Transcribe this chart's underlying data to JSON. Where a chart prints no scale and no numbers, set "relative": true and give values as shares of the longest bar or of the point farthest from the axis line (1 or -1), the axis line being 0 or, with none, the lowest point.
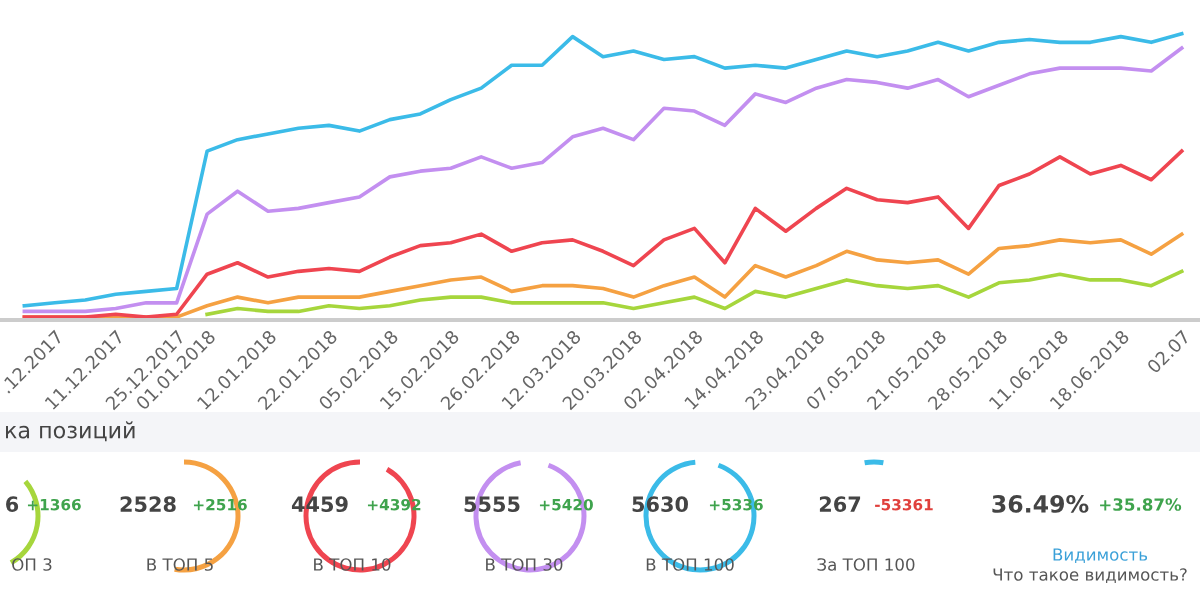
{
  "chart_data": [
    {
      "type": "line",
      "relative": true,
      "marker": "none",
      "line_style": "solid",
      "categories": [
        null,
        ".12.2017",
        null,
        "11.12.2017",
        null,
        "25.12.2017",
        "01.01.2018",
        null,
        "12.01.2018",
        null,
        "22.01.2018",
        null,
        "05.02.2018",
        null,
        "15.02.2018",
        null,
        "26.02.2018",
        null,
        "12.03.2018",
        null,
        "20.03.2018",
        null,
        "02.04.2018",
        null,
        "14.04.2018",
        null,
        "23.04.2018",
        null,
        "07.05.2018",
        null,
        "21.05.2018",
        null,
        "28.05.2018",
        null,
        "11.06.2018",
        null,
        "18.06.2018",
        null,
        "02.07"
      ],
      "series": [
        {
          "color": "#a6d63c",
          "values": [
            null,
            null,
            null,
            null,
            null,
            null,
            0.02,
            0.04,
            0.03,
            0.03,
            0.05,
            0.04,
            0.05,
            0.07,
            0.08,
            0.08,
            0.06,
            0.06,
            0.06,
            0.06,
            0.04,
            0.06,
            0.08,
            0.04,
            0.1,
            0.08,
            0.11,
            0.14,
            0.12,
            0.11,
            0.12,
            0.08,
            0.13,
            0.14,
            0.16,
            0.14,
            0.14,
            0.12,
            0.17
          ]
        },
        {
          "color": "#f5a142",
          "values": [
            0.01,
            0.01,
            0.01,
            0.01,
            0.01,
            0.01,
            0.05,
            0.08,
            0.06,
            0.08,
            0.08,
            0.08,
            0.1,
            0.12,
            0.14,
            0.15,
            0.1,
            0.12,
            0.12,
            0.11,
            0.08,
            0.12,
            0.15,
            0.08,
            0.19,
            0.15,
            0.19,
            0.24,
            0.21,
            0.2,
            0.21,
            0.16,
            0.25,
            0.26,
            0.28,
            0.27,
            0.28,
            0.23,
            0.3
          ]
        },
        {
          "color": "#ef4550",
          "values": [
            0.01,
            0.01,
            0.01,
            0.02,
            0.01,
            0.02,
            0.16,
            0.2,
            0.15,
            0.17,
            0.18,
            0.17,
            0.22,
            0.26,
            0.27,
            0.3,
            0.24,
            0.27,
            0.28,
            0.24,
            0.19,
            0.28,
            0.32,
            0.2,
            0.39,
            0.31,
            0.39,
            0.46,
            0.42,
            0.41,
            0.43,
            0.32,
            0.47,
            0.51,
            0.57,
            0.51,
            0.54,
            0.49,
            0.59
          ]
        },
        {
          "color": "#c38ff0",
          "values": [
            0.03,
            0.03,
            0.03,
            0.04,
            0.06,
            0.06,
            0.37,
            0.45,
            0.38,
            0.39,
            0.41,
            0.43,
            0.5,
            0.52,
            0.53,
            0.57,
            0.53,
            0.55,
            0.64,
            0.67,
            0.63,
            0.74,
            0.73,
            0.68,
            0.79,
            0.76,
            0.81,
            0.84,
            0.83,
            0.81,
            0.84,
            0.78,
            0.82,
            0.86,
            0.88,
            0.88,
            0.88,
            0.87,
            0.95
          ]
        },
        {
          "color": "#3bbbe8",
          "values": [
            0.05,
            0.06,
            0.07,
            0.09,
            0.1,
            0.11,
            0.59,
            0.63,
            0.65,
            0.67,
            0.68,
            0.66,
            0.7,
            0.72,
            0.77,
            0.81,
            0.89,
            0.89,
            0.99,
            0.92,
            0.94,
            0.91,
            0.92,
            0.88,
            0.89,
            0.88,
            0.91,
            0.94,
            0.92,
            0.94,
            0.97,
            0.94,
            0.97,
            0.98,
            0.97,
            0.97,
            0.99,
            0.97,
            1
          ]
        }
      ]
    },
    {
      "type": "other",
      "title": "ка позиций",
      "annotations": [
        "6",
        "+1366",
        "ОП 3",
        "2528",
        "+2516",
        "В ТОП 5",
        "4459",
        "+4392",
        "В ТОП 10",
        "5555",
        "+5420",
        "В ТОП 30",
        "5630",
        "+5336",
        "В ТОП 100",
        "267",
        "-53361",
        "За ТОП 100",
        "36.49%",
        "+35.87%",
        "Видимость",
        "Что такое видимость?"
      ]
    }
  ]
}
